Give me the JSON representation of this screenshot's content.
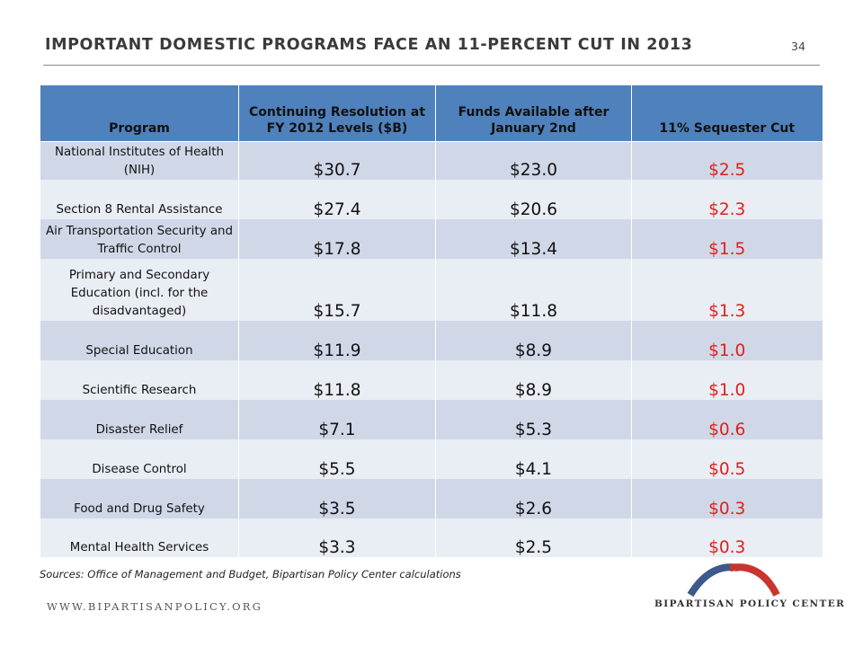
{
  "header": {
    "title": "IMPORTANT DOMESTIC PROGRAMS FACE AN 11-PERCENT CUT IN 2013",
    "page_number": "34"
  },
  "table": {
    "columns": [
      "Program",
      "Continuing Resolution at FY 2012 Levels ($B)",
      "Funds Available after January 2nd",
      "11% Sequester Cut"
    ],
    "rows": [
      {
        "program": "National Institutes of Health (NIH)",
        "cr": "$30.7",
        "funds": "$23.0",
        "cut": "$2.5"
      },
      {
        "program": "Section 8 Rental Assistance",
        "cr": "$27.4",
        "funds": "$20.6",
        "cut": "$2.3"
      },
      {
        "program": "Air Transportation Security and Traffic Control",
        "cr": "$17.8",
        "funds": "$13.4",
        "cut": "$1.5"
      },
      {
        "program": "Primary and Secondary Education (incl. for the disadvantaged)",
        "cr": "$15.7",
        "funds": "$11.8",
        "cut": "$1.3"
      },
      {
        "program": "Special Education",
        "cr": "$11.9",
        "funds": "$8.9",
        "cut": "$1.0"
      },
      {
        "program": "Scientific Research",
        "cr": "$11.8",
        "funds": "$8.9",
        "cut": "$1.0"
      },
      {
        "program": "Disaster Relief",
        "cr": "$7.1",
        "funds": "$5.3",
        "cut": "$0.6"
      },
      {
        "program": "Disease Control",
        "cr": "$5.5",
        "funds": "$4.1",
        "cut": "$0.5"
      },
      {
        "program": "Food and Drug Safety",
        "cr": "$3.5",
        "funds": "$2.6",
        "cut": "$0.3"
      },
      {
        "program": "Mental Health Services",
        "cr": "$3.3",
        "funds": "$2.5",
        "cut": "$0.3"
      }
    ]
  },
  "footer": {
    "sources": "Sources: Office of Management and Budget, Bipartisan Policy Center calculations",
    "url": "WWW.BIPARTISANPOLICY.ORG",
    "logo_text": "BIPARTISAN POLICY CENTER"
  },
  "colors": {
    "header_blue": "#4f81bd",
    "row_odd": "#d0d8e8",
    "row_even": "#e9edf4",
    "cut_red": "#e0201c",
    "logo_blue": "#3d5a8a",
    "logo_red": "#c8352e"
  }
}
